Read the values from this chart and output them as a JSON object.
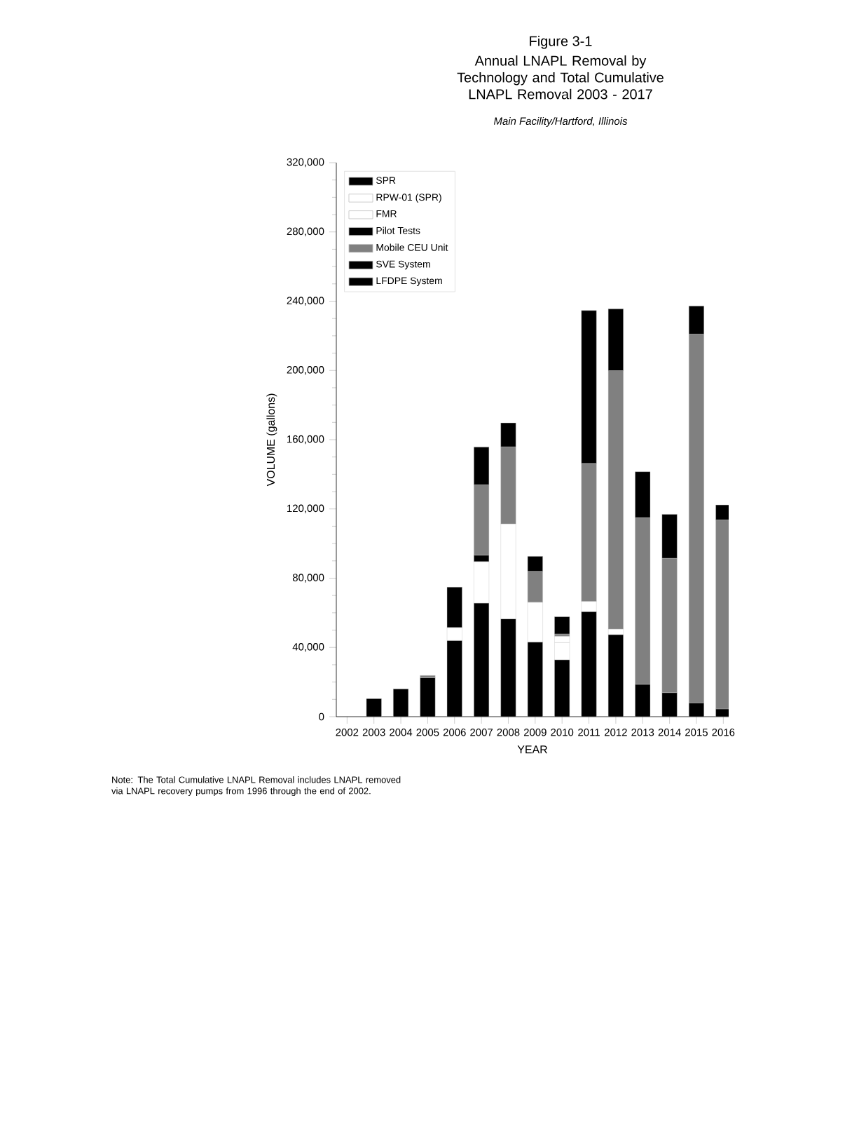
{
  "chart_data": {
    "type": "bar",
    "stacked": true,
    "title": "Figure 3-1",
    "subtitle": "Annual LNAPL Removal by Technology and Total Cumulative LNAPL Removal 2003 - 2017",
    "xlabel": "YEAR",
    "ylabel": "VOLUME (gallons)",
    "annotations": [
      "Main Facility/Hartford, Illinois",
      "Note: The Total Cumulative LNAPL Removal includes LNAPL removed via LNAPL recovery pumps from 1996 through the end of 2002."
    ],
    "categories": [
      "2002",
      "2003",
      "2004",
      "2005",
      "2006",
      "2007",
      "2008",
      "2009",
      "2010",
      "2011",
      "2012",
      "2013",
      "2014",
      "2015",
      "2016"
    ],
    "ylim": [
      0,
      320000
    ],
    "yticks": [
      {
        "value": 0,
        "label": "0"
      },
      {
        "value": 40000,
        "label": "40,000"
      },
      {
        "value": 80000,
        "label": "80,000"
      },
      {
        "value": 120000,
        "label": "120,000"
      },
      {
        "value": 160000,
        "label": "160,000"
      },
      {
        "value": 200000,
        "label": "200,000"
      },
      {
        "value": 240000,
        "label": "240,000"
      },
      {
        "value": 280000,
        "label": "280,000"
      },
      {
        "value": 320000,
        "label": "320,000"
      }
    ],
    "legend": "top left",
    "series": [
      {
        "name": "SPR",
        "color": "#000000",
        "values": [
          null,
          10400,
          16000,
          22500,
          44000,
          65600,
          56500,
          43100,
          32900,
          60700,
          47400,
          18700,
          13900,
          8000,
          4500
        ]
      },
      {
        "name": "RPW-01 (SPR)",
        "color": "#ffffff",
        "values": [
          null,
          null,
          null,
          null,
          null,
          null,
          null,
          null,
          9900,
          null,
          null,
          null,
          null,
          null,
          null
        ]
      },
      {
        "name": "FMR",
        "color": "#ffffff",
        "values": [
          null,
          null,
          null,
          null,
          7500,
          24000,
          54900,
          23000,
          3700,
          5900,
          3200,
          null,
          null,
          null,
          null
        ]
      },
      {
        "name": "Pilot Tests",
        "color": "#000000",
        "values": [
          null,
          null,
          null,
          null,
          23300,
          3700,
          null,
          null,
          null,
          null,
          null,
          null,
          null,
          null,
          null
        ]
      },
      {
        "name": "Mobile CEU Unit",
        "color": "#808080",
        "values": [
          null,
          null,
          null,
          1300,
          null,
          40700,
          44500,
          17900,
          1300,
          79700,
          149300,
          96300,
          77600,
          213000,
          109200
        ]
      },
      {
        "name": "SVE System",
        "color": "#000000",
        "values": [
          null,
          null,
          null,
          null,
          null,
          21700,
          13800,
          8600,
          9900,
          null,
          null,
          null,
          null,
          null,
          null
        ]
      },
      {
        "name": "LFDPE System",
        "color": "#000000",
        "values": [
          null,
          null,
          null,
          null,
          null,
          null,
          null,
          null,
          null,
          88300,
          35600,
          26500,
          25400,
          16200,
          8600
        ]
      }
    ]
  }
}
